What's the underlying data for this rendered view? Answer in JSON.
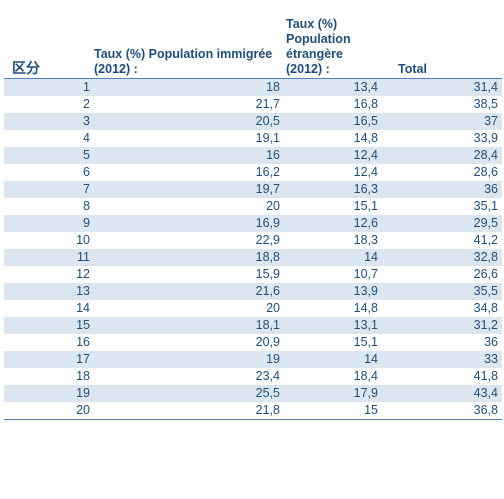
{
  "table": {
    "headers": {
      "district": "区分",
      "immigrant": "Taux (%)  Population immigrée  (2012) :",
      "foreign": "Taux (%) Population étrangère (2012) :",
      "total": "Total"
    },
    "rows": [
      [
        "1",
        "18",
        "13,4",
        "31,4"
      ],
      [
        "2",
        "21,7",
        "16,8",
        "38,5"
      ],
      [
        "3",
        "20,5",
        "16,5",
        "37"
      ],
      [
        "4",
        "19,1",
        "14,8",
        "33,9"
      ],
      [
        "5",
        "16",
        "12,4",
        "28,4"
      ],
      [
        "6",
        "16,2",
        "12,4",
        "28,6"
      ],
      [
        "7",
        "19,7",
        "16,3",
        "36"
      ],
      [
        "8",
        "20",
        "15,1",
        "35,1"
      ],
      [
        "9",
        "16,9",
        "12,6",
        "29,5"
      ],
      [
        "10",
        "22,9",
        "18,3",
        "41,2"
      ],
      [
        "11",
        "18,8",
        "14",
        "32,8"
      ],
      [
        "12",
        "15,9",
        "10,7",
        "26,6"
      ],
      [
        "13",
        "21,6",
        "13,9",
        "35,5"
      ],
      [
        "14",
        "20",
        "14,8",
        "34,8"
      ],
      [
        "15",
        "18,1",
        "13,1",
        "31,2"
      ],
      [
        "16",
        "20,9",
        "15,1",
        "36"
      ],
      [
        "17",
        "19",
        "14",
        "33"
      ],
      [
        "18",
        "23,4",
        "18,4",
        "41,8"
      ],
      [
        "19",
        "25,5",
        "17,9",
        "43,4"
      ],
      [
        "20",
        "21,8",
        "15",
        "36,8"
      ]
    ]
  }
}
